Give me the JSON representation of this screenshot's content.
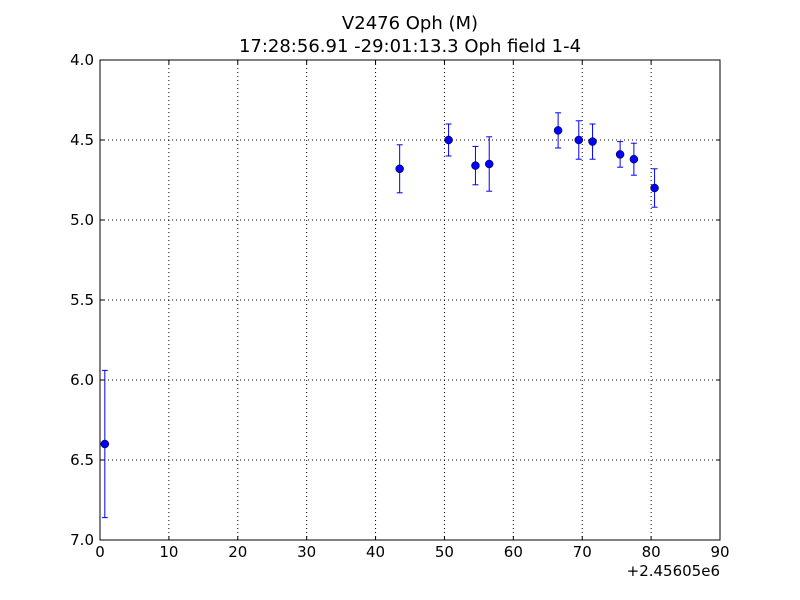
{
  "chart_data": {
    "type": "scatter",
    "title": "V2476 Oph (M)",
    "subtitle": "17:28:56.91 -29:01:13.3 Oph field 1-4",
    "xlabel": "",
    "ylabel": "",
    "x_offset_label": "+2.45605e6",
    "xlim": [
      0,
      90
    ],
    "ylim": [
      7.0,
      4.0
    ],
    "y_inverted": true,
    "grid": true,
    "x_ticks": [
      0,
      10,
      20,
      30,
      40,
      50,
      60,
      70,
      80,
      90
    ],
    "x_tick_labels": [
      "0",
      "10",
      "20",
      "30",
      "40",
      "50",
      "60",
      "70",
      "80",
      "90"
    ],
    "y_ticks": [
      4.0,
      4.5,
      5.0,
      5.5,
      6.0,
      6.5,
      7.0
    ],
    "y_tick_labels": [
      "4.0",
      "4.5",
      "5.0",
      "5.5",
      "6.0",
      "6.5",
      "7.0"
    ],
    "marker_color": "#0000ff",
    "series": [
      {
        "points": [
          {
            "x": 0.7,
            "y": 6.4,
            "err": 0.46
          },
          {
            "x": 43.5,
            "y": 4.68,
            "err": 0.15
          },
          {
            "x": 50.6,
            "y": 4.5,
            "err": 0.1
          },
          {
            "x": 54.5,
            "y": 4.66,
            "err": 0.12
          },
          {
            "x": 56.5,
            "y": 4.65,
            "err": 0.17
          },
          {
            "x": 66.5,
            "y": 4.44,
            "err": 0.11
          },
          {
            "x": 69.5,
            "y": 4.5,
            "err": 0.12
          },
          {
            "x": 71.5,
            "y": 4.51,
            "err": 0.11
          },
          {
            "x": 75.5,
            "y": 4.59,
            "err": 0.08
          },
          {
            "x": 77.5,
            "y": 4.62,
            "err": 0.1
          },
          {
            "x": 80.5,
            "y": 4.8,
            "err": 0.12
          }
        ]
      }
    ]
  }
}
